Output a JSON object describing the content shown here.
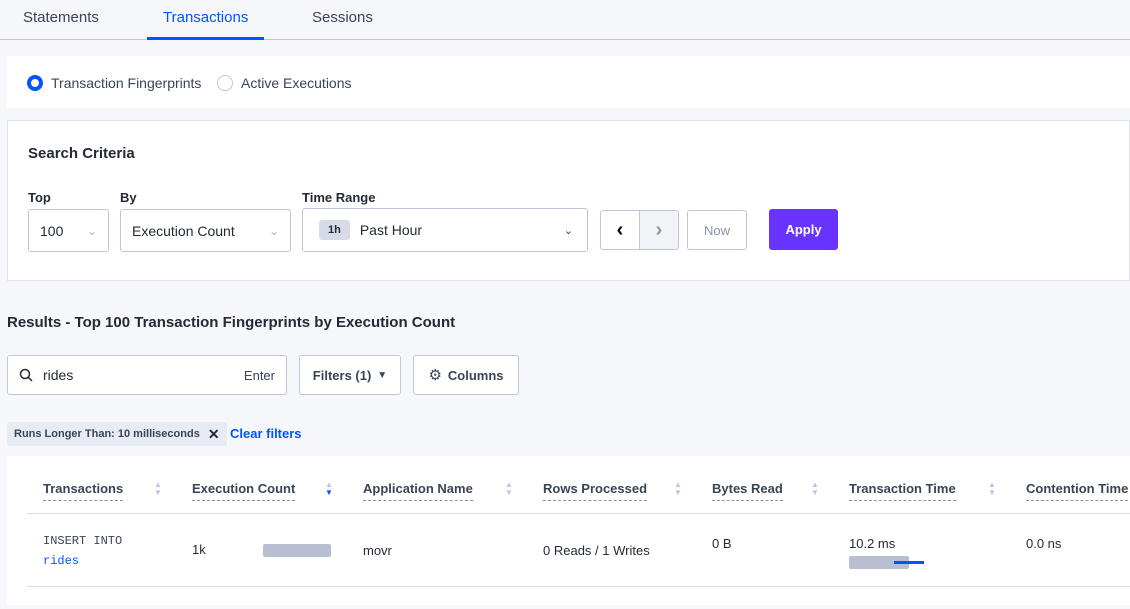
{
  "tabs": [
    {
      "label": "Statements"
    },
    {
      "label": "Transactions"
    },
    {
      "label": "Sessions"
    }
  ],
  "active_tab": "Transactions",
  "view_mode": {
    "options": [
      {
        "label": "Transaction Fingerprints",
        "selected": true
      },
      {
        "label": "Active Executions",
        "selected": false
      }
    ]
  },
  "search_criteria": {
    "title": "Search Criteria",
    "top": {
      "label": "Top",
      "value": "100"
    },
    "by": {
      "label": "By",
      "value": "Execution Count"
    },
    "time_range": {
      "label": "Time Range",
      "badge": "1h",
      "value": "Past Hour"
    },
    "now_label": "Now",
    "apply_label": "Apply"
  },
  "results": {
    "title": "Results - Top 100 Transaction Fingerprints by Execution Count",
    "search": {
      "value": "rides",
      "hint": "Enter"
    },
    "filters_label": "Filters (1)",
    "columns_label": "Columns",
    "active_filter": "Runs Longer Than: 10 milliseconds",
    "clear_filters": "Clear filters"
  },
  "table": {
    "columns": [
      "Transactions",
      "Execution Count",
      "Application Name",
      "Rows Processed",
      "Bytes Read",
      "Transaction Time",
      "Contention Time"
    ],
    "sorted_column": "Execution Count",
    "sort_direction": "descending",
    "rows": [
      {
        "statement_prefix": "INSERT INTO",
        "statement_link": "rides",
        "execution_count": "1k",
        "application": "movr",
        "rows_processed": "0 Reads / 1 Writes",
        "bytes_read": "0 B",
        "transaction_time": "10.2 ms",
        "contention_time": "0.0 ns"
      }
    ]
  },
  "colors": {
    "accent": "#0055ff",
    "apply": "#6933ff",
    "bar": "#b8bfd1"
  }
}
